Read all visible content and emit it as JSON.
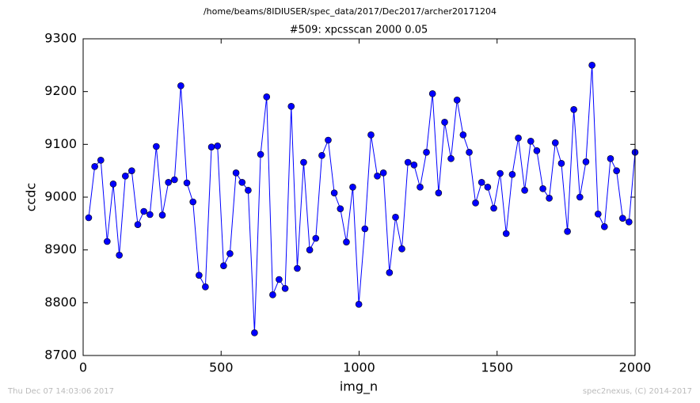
{
  "chart_data": {
    "type": "line",
    "suptitle": "/home/beams/8IDIUSER/spec_data/2017/Dec2017/archer20171204",
    "title": "#509: xpcsscan 2000 0.05",
    "xlabel": "img_n",
    "ylabel": "ccdc",
    "footer_left": "Thu Dec 07 14:03:06 2017",
    "footer_right": "spec2nexus, (C) 2014-2017",
    "xlim": [
      0,
      2000
    ],
    "xticks": [
      0,
      500,
      1000,
      1500,
      2000
    ],
    "ylim": [
      8700,
      9300
    ],
    "yticks": [
      8700,
      8800,
      8900,
      9000,
      9100,
      9200,
      9300
    ],
    "grid": false,
    "series": [
      {
        "color": "#0000ff",
        "x": [
          20,
          42,
          64,
          87,
          109,
          131,
          153,
          176,
          198,
          220,
          242,
          265,
          287,
          309,
          331,
          354,
          376,
          398,
          420,
          443,
          465,
          487,
          509,
          532,
          554,
          576,
          598,
          621,
          643,
          665,
          687,
          710,
          732,
          754,
          776,
          799,
          821,
          843,
          865,
          888,
          910,
          932,
          954,
          977,
          999,
          1021,
          1043,
          1066,
          1088,
          1110,
          1132,
          1155,
          1177,
          1199,
          1221,
          1244,
          1266,
          1288,
          1310,
          1333,
          1355,
          1377,
          1399,
          1422,
          1444,
          1466,
          1488,
          1511,
          1533,
          1555,
          1577,
          1600,
          1622,
          1644,
          1666,
          1689,
          1711,
          1733,
          1755,
          1778,
          1800,
          1822,
          1844,
          1866,
          1889,
          1911,
          1933,
          1955,
          1978,
          2000
        ],
        "values": [
          8961,
          9058,
          9070,
          8916,
          9025,
          8890,
          9040,
          9050,
          8948,
          8973,
          8967,
          9096,
          8966,
          9028,
          9033,
          9211,
          9027,
          8991,
          8852,
          8830,
          9095,
          9097,
          8870,
          8893,
          9046,
          9028,
          9013,
          8743,
          9081,
          9190,
          8815,
          8844,
          8827,
          9172,
          8865,
          9066,
          8900,
          8922,
          9079,
          9108,
          9008,
          8978,
          8915,
          9019,
          8797,
          8940,
          9118,
          9040,
          9046,
          8857,
          8962,
          8902,
          9066,
          9061,
          9019,
          9085,
          9196,
          9008,
          9142,
          9073,
          9184,
          9118,
          9085,
          8989,
          9028,
          9019,
          8979,
          9045,
          8931,
          9043,
          9112,
          9013,
          9106,
          9088,
          9016,
          8998,
          9103,
          9064,
          8935,
          9166,
          9000,
          9067,
          9250,
          8968,
          8944,
          9073,
          9050,
          8960,
          8953,
          9085
        ]
      }
    ]
  }
}
